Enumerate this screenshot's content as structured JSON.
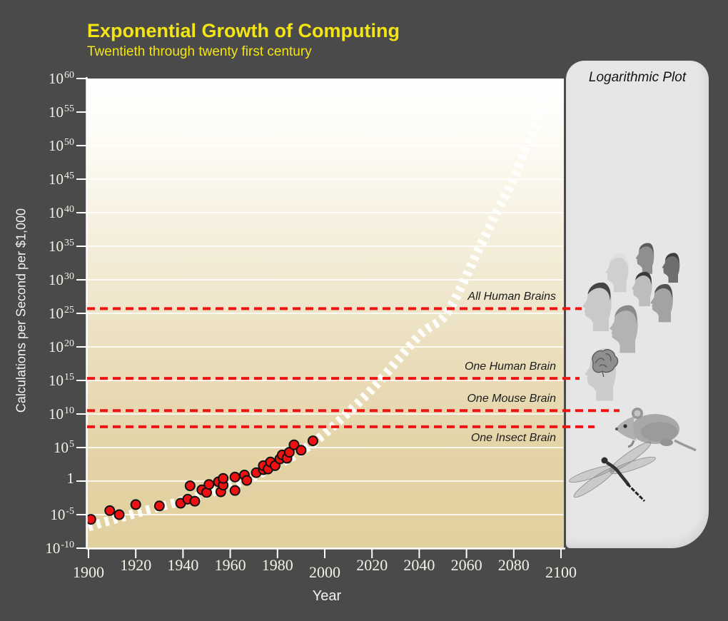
{
  "header": {
    "title": "Exponential Growth of Computing",
    "subtitle": "Twentieth through twenty first century",
    "title_color": "#f3e514"
  },
  "side_panel": {
    "title": "Logarithmic Plot",
    "background": "#e6e6e6",
    "images": [
      "human-heads",
      "human-brain-cutaway",
      "mouse",
      "dragonfly"
    ]
  },
  "colors": {
    "background": "#4a4a4a",
    "axis_text": "#f3f0e6",
    "axis_line": "#ffffff",
    "gridline": "rgba(255,255,255,0.8)",
    "trend": "#ffffff",
    "point_fill": "#ee1111",
    "point_stroke": "#111111",
    "threshold_red": "#ea1515",
    "plot_gradient_top": "#ffffff",
    "plot_gradient_bottom": "#e2d1a0"
  },
  "chart_data": {
    "type": "scatter",
    "title": "Exponential Growth of Computing",
    "subtitle": "Twentieth through twenty first century",
    "xlabel": "Year",
    "ylabel": "Calculations per Second per $1,000",
    "y_scale": "log10",
    "x_range": [
      1900,
      2100
    ],
    "y_exp_range": [
      -10,
      60
    ],
    "grid": "horizontal-only",
    "legend": "none",
    "x_ticks": [
      1900,
      1920,
      1940,
      1960,
      1980,
      2000,
      2020,
      2040,
      2060,
      2080,
      2100
    ],
    "y_ticks": [
      {
        "exp": 60,
        "label": "10^60"
      },
      {
        "exp": 55,
        "label": "10^55"
      },
      {
        "exp": 50,
        "label": "10^50"
      },
      {
        "exp": 45,
        "label": "10^45"
      },
      {
        "exp": 40,
        "label": "10^40"
      },
      {
        "exp": 35,
        "label": "10^35"
      },
      {
        "exp": 30,
        "label": "10^30"
      },
      {
        "exp": 25,
        "label": "10^25"
      },
      {
        "exp": 20,
        "label": "10^20"
      },
      {
        "exp": 15,
        "label": "10^15"
      },
      {
        "exp": 10,
        "label": "10^10"
      },
      {
        "exp": 5,
        "label": "10^5"
      },
      {
        "exp": 0,
        "label": "1"
      },
      {
        "exp": -5,
        "label": "10^-5"
      },
      {
        "exp": -10,
        "label": "10^-10"
      }
    ],
    "points_series": {
      "name": "historical computing devices (calculations/sec per $1,000, log10 exponent)",
      "color": "#ee1111",
      "points": [
        [
          1901,
          -5.7
        ],
        [
          1909,
          -4.4
        ],
        [
          1913,
          -5.0
        ],
        [
          1920,
          -3.5
        ],
        [
          1930,
          -3.7
        ],
        [
          1939,
          -3.3
        ],
        [
          1942,
          -2.7
        ],
        [
          1943,
          -0.7
        ],
        [
          1945,
          -3.0
        ],
        [
          1948,
          -1.3
        ],
        [
          1950,
          -1.7
        ],
        [
          1951,
          -0.5
        ],
        [
          1955,
          -0.1
        ],
        [
          1956,
          -1.6
        ],
        [
          1957,
          -0.6
        ],
        [
          1957,
          0.4
        ],
        [
          1962,
          0.6
        ],
        [
          1962,
          -1.4
        ],
        [
          1966,
          0.9
        ],
        [
          1967,
          0.1
        ],
        [
          1971,
          1.25
        ],
        [
          1974,
          1.7
        ],
        [
          1974,
          2.3
        ],
        [
          1976,
          1.8
        ],
        [
          1977,
          2.85
        ],
        [
          1979,
          2.3
        ],
        [
          1981,
          3.3
        ],
        [
          1982,
          3.9
        ],
        [
          1984,
          3.4
        ],
        [
          1985,
          4.3
        ],
        [
          1987,
          5.4
        ],
        [
          1990,
          4.6
        ],
        [
          1995,
          6.0
        ]
      ]
    },
    "trend_series": {
      "name": "exponential growth trend",
      "style": "thick white hashed dashes",
      "color": "#ffffff",
      "points": [
        [
          1900,
          -6.8
        ],
        [
          1923,
          -4.5
        ],
        [
          1947,
          -2.2
        ],
        [
          1968,
          0.4
        ],
        [
          1986,
          3.6
        ],
        [
          2000,
          7.1
        ],
        [
          2020,
          13.7
        ],
        [
          2040,
          21.7
        ],
        [
          2052,
          25.2
        ],
        [
          2066,
          35.2
        ],
        [
          2074,
          40.9
        ],
        [
          2080,
          45.1
        ],
        [
          2086,
          50.4
        ],
        [
          2093,
          55.7
        ],
        [
          2098,
          59.2
        ]
      ]
    },
    "thresholds": [
      {
        "label": "All Human Brains",
        "exp": 25.7,
        "label_position": "above",
        "line_end_x": 815
      },
      {
        "label": "One Human Brain",
        "exp": 15.3,
        "label_position": "above",
        "line_end_x": 812
      },
      {
        "label": "One Mouse Brain",
        "exp": 10.5,
        "label_position": "above",
        "line_end_x": 868
      },
      {
        "label": "One Insect Brain",
        "exp": 8.1,
        "label_position": "below",
        "line_end_x": 833
      }
    ],
    "threshold_color": "#ea1515"
  }
}
